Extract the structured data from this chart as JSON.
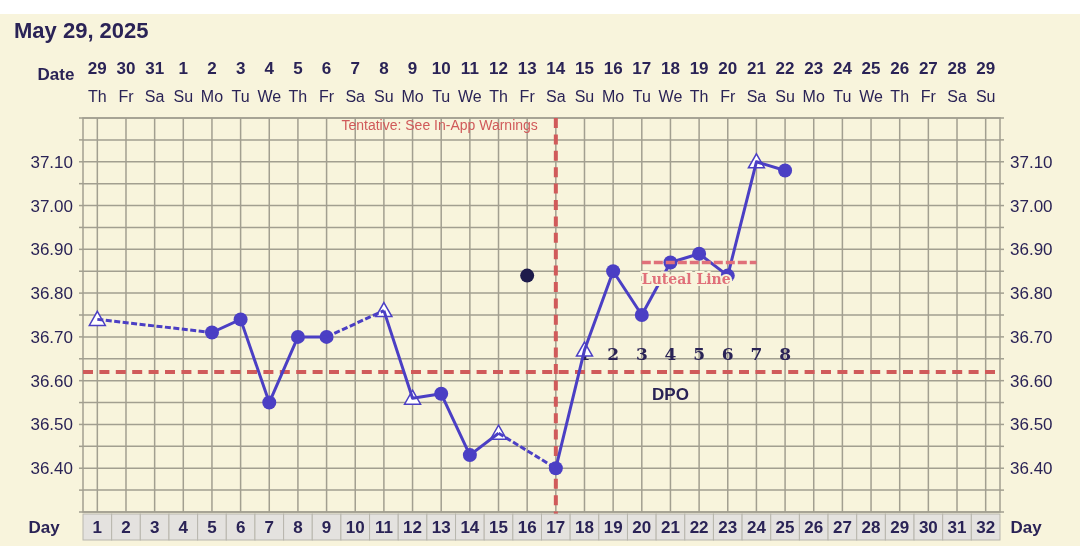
{
  "chart_data": {
    "type": "line",
    "title": "May 29, 2025",
    "xlabel": "Date",
    "x2label": "Day",
    "xlim": [
      "2025-05-28T12:00",
      "2025-06-29T12:00"
    ],
    "xticks": [
      {
        "value": "2025-05-29",
        "label": "29"
      },
      {
        "value": "2025-05-30",
        "label": "30"
      },
      {
        "value": "2025-05-31",
        "label": "31"
      },
      {
        "value": "2025-06-01",
        "label": "1"
      },
      {
        "value": "2025-06-02",
        "label": "2"
      },
      {
        "value": "2025-06-03",
        "label": "3"
      },
      {
        "value": "2025-06-04",
        "label": "4"
      },
      {
        "value": "2025-06-05",
        "label": "5"
      },
      {
        "value": "2025-06-06",
        "label": "6"
      },
      {
        "value": "2025-06-07",
        "label": "7"
      },
      {
        "value": "2025-06-08",
        "label": "8"
      },
      {
        "value": "2025-06-09",
        "label": "9"
      },
      {
        "value": "2025-06-10",
        "label": "10"
      },
      {
        "value": "2025-06-11",
        "label": "11"
      },
      {
        "value": "2025-06-12",
        "label": "12"
      },
      {
        "value": "2025-06-13",
        "label": "13"
      },
      {
        "value": "2025-06-14",
        "label": "14"
      },
      {
        "value": "2025-06-15",
        "label": "15"
      },
      {
        "value": "2025-06-16",
        "label": "16"
      },
      {
        "value": "2025-06-17",
        "label": "17"
      },
      {
        "value": "2025-06-18",
        "label": "18"
      },
      {
        "value": "2025-06-19",
        "label": "19"
      },
      {
        "value": "2025-06-20",
        "label": "20"
      },
      {
        "value": "2025-06-21",
        "label": "21"
      },
      {
        "value": "2025-06-22",
        "label": "22"
      },
      {
        "value": "2025-06-23",
        "label": "23"
      },
      {
        "value": "2025-06-24",
        "label": "24"
      },
      {
        "value": "2025-06-25",
        "label": "25"
      },
      {
        "value": "2025-06-26",
        "label": "26"
      },
      {
        "value": "2025-06-27",
        "label": "27"
      },
      {
        "value": "2025-06-28",
        "label": "28"
      },
      {
        "value": "2025-06-29",
        "label": "29"
      }
    ],
    "x2lim": [
      0.5,
      32.5
    ],
    "x2ticks": [
      1,
      2,
      3,
      4,
      5,
      6,
      7,
      8,
      9,
      10,
      11,
      12,
      13,
      14,
      15,
      16,
      17,
      18,
      19,
      20,
      21,
      22,
      23,
      24,
      25,
      26,
      27,
      28,
      29,
      30,
      31,
      32
    ],
    "ylim": [
      36.3,
      37.2
    ],
    "yticks": [
      {
        "value": 36.3,
        "label": null
      },
      {
        "value": 36.35,
        "label": null
      },
      {
        "value": 36.4,
        "label": "36.40"
      },
      {
        "value": 36.45,
        "label": null
      },
      {
        "value": 36.5,
        "label": "36.50"
      },
      {
        "value": 36.55,
        "label": null
      },
      {
        "value": 36.6,
        "label": "36.60"
      },
      {
        "value": 36.65,
        "label": null
      },
      {
        "value": 36.7,
        "label": "36.70"
      },
      {
        "value": 36.75,
        "label": null
      },
      {
        "value": 36.8,
        "label": "36.80"
      },
      {
        "value": 36.85,
        "label": null
      },
      {
        "value": 36.9,
        "label": "36.90"
      },
      {
        "value": 36.95,
        "label": null
      },
      {
        "value": 37.0,
        "label": "37.00"
      },
      {
        "value": 37.05,
        "label": null
      },
      {
        "value": 37.1,
        "label": "37.10"
      },
      {
        "value": 37.15,
        "label": null
      },
      {
        "value": 37.2,
        "label": null
      }
    ],
    "y2lim": [
      36.3,
      37.2
    ],
    "y2ticks": [
      {
        "value": 36.3,
        "label": null
      },
      {
        "value": 36.35,
        "label": null
      },
      {
        "value": 36.4,
        "label": "36.40"
      },
      {
        "value": 36.45,
        "label": null
      },
      {
        "value": 36.5,
        "label": "36.50"
      },
      {
        "value": 36.55,
        "label": null
      },
      {
        "value": 36.6,
        "label": "36.60"
      },
      {
        "value": 36.65,
        "label": null
      },
      {
        "value": 36.7,
        "label": "36.70"
      },
      {
        "value": 36.75,
        "label": null
      },
      {
        "value": 36.8,
        "label": "36.80"
      },
      {
        "value": 36.85,
        "label": null
      },
      {
        "value": 36.9,
        "label": "36.90"
      },
      {
        "value": 36.95,
        "label": null
      },
      {
        "value": 37.0,
        "label": "37.00"
      },
      {
        "value": 37.05,
        "label": null
      },
      {
        "value": 37.1,
        "label": "37.10"
      },
      {
        "value": 37.15,
        "label": null
      },
      {
        "value": 37.2,
        "label": null
      }
    ],
    "grid": true,
    "series": [
      {
        "color": "#4b3fc4",
        "line_style": "solid",
        "marker": "none",
        "x": [
          "2025-06-02",
          "2025-06-03",
          "2025-06-04",
          "2025-06-05",
          "2025-06-06",
          "2025-06-07",
          "2025-06-08",
          "2025-06-09",
          "2025-06-10",
          "2025-06-11",
          "2025-06-12",
          "2025-06-13",
          "2025-06-14",
          "2025-06-15",
          "2025-06-16",
          "2025-06-17",
          "2025-06-18",
          "2025-06-19",
          "2025-06-20",
          "2025-06-21",
          "2025-06-22"
        ],
        "values": [
          36.71,
          36.74,
          36.55,
          36.7,
          36.7,
          null,
          36.76,
          36.56,
          36.57,
          36.43,
          36.48,
          null,
          36.4,
          36.67,
          36.85,
          36.75,
          36.87,
          36.89,
          36.84,
          37.1,
          37.08
        ]
      },
      {
        "color": "#4b3fc4",
        "line_style": "dashed",
        "marker": "none",
        "x": [
          "2025-05-29",
          "2025-06-02"
        ],
        "values": [
          36.74,
          36.71
        ]
      },
      {
        "color": "#4a3ec3",
        "line_style": "dashed",
        "marker": "none",
        "x": [
          "2025-06-06",
          "2025-06-08"
        ],
        "values": [
          36.7,
          36.76
        ]
      },
      {
        "color": "#4c40c5",
        "line_style": "dashed",
        "marker": "none",
        "x": [
          "2025-06-12",
          "2025-06-14"
        ],
        "values": [
          36.48,
          36.4
        ]
      },
      {
        "type": "scatter",
        "color": "#4b3fc4",
        "marker": "circle",
        "x": [
          "2025-06-02",
          "2025-06-03",
          "2025-06-04",
          "2025-06-05",
          "2025-06-06",
          "2025-06-10",
          "2025-06-11",
          "2025-06-14",
          "2025-06-16",
          "2025-06-17",
          "2025-06-18",
          "2025-06-19",
          "2025-06-20",
          "2025-06-22"
        ],
        "values": [
          36.71,
          36.74,
          36.55,
          36.7,
          36.7,
          36.57,
          36.43,
          36.4,
          36.85,
          36.75,
          36.87,
          36.89,
          36.84,
          37.08
        ]
      },
      {
        "type": "scatter",
        "color": "#4b3fc4",
        "marker": "triangle",
        "x": [
          "2025-05-29",
          "2025-06-08",
          "2025-06-09",
          "2025-06-12",
          "2025-06-15",
          "2025-06-21"
        ],
        "values": [
          36.74,
          36.76,
          36.56,
          36.48,
          36.67,
          37.1
        ]
      },
      {
        "type": "scatter",
        "color": "#1e1b4b",
        "marker": "circle",
        "x": [
          "2025-06-13"
        ],
        "values": [
          36.84
        ]
      },
      {
        "name": "Luteal Line",
        "color": "#e0707a",
        "line_style": "dashed",
        "marker": "none",
        "x": [
          "2025-06-17",
          "2025-06-21"
        ],
        "values": [
          36.87,
          36.87
        ]
      }
    ],
    "ref_lines": [
      {
        "axis": "x",
        "value": "2025-06-14",
        "label": "Tentative: See In-App Warnings",
        "color": "#d05a5a",
        "line_style": "dashed"
      },
      {
        "axis": "y",
        "value": 36.62,
        "color": "#d05a5a",
        "line_style": "dashed"
      }
    ],
    "annotations": [
      "Th",
      "Fr",
      "Sa",
      "Su",
      "Mo",
      "Tu",
      "We",
      "Th",
      "Fr",
      "Sa",
      "Su",
      "Mo",
      "Tu",
      "We",
      "Th",
      "Fr",
      "Sa",
      "Su",
      "Mo",
      "Tu",
      "We",
      "Th",
      "Fr",
      "Sa",
      "Su",
      "Mo",
      "Tu",
      "We",
      "Th",
      "Fr",
      "Sa",
      "Su",
      "1",
      "2",
      "3",
      "4",
      "5",
      "6",
      "7",
      "8",
      "DPO"
    ]
  }
}
